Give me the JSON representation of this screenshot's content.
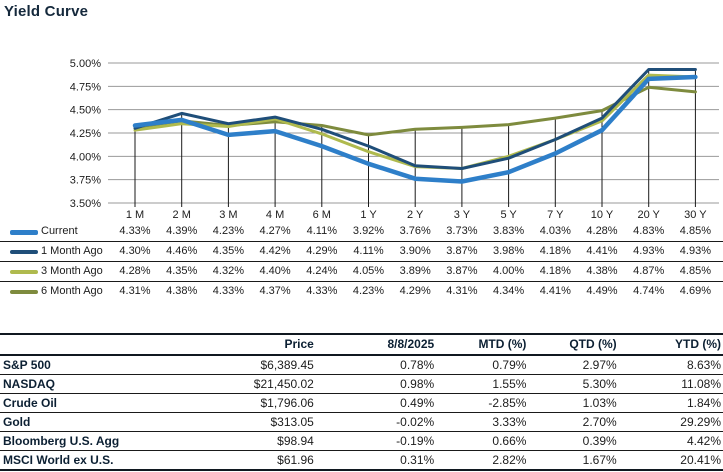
{
  "title": "Yield Curve",
  "chart_data": {
    "type": "line",
    "title": "Yield Curve",
    "categories": [
      "1 M",
      "2 M",
      "3 M",
      "4 M",
      "6 M",
      "1 Y",
      "2 Y",
      "3 Y",
      "5 Y",
      "7 Y",
      "10 Y",
      "20 Y",
      "30 Y"
    ],
    "y_ticks": [
      "5.00%",
      "4.75%",
      "4.50%",
      "4.25%",
      "4.00%",
      "3.75%",
      "3.50%"
    ],
    "ylim": [
      3.5,
      5.0
    ],
    "y_step": 0.25,
    "grid": true,
    "grid_color": "#999999",
    "drop_lines": true,
    "dropline_color": "#1a1a1a",
    "legend_position": "bottom-table",
    "value_format": "percent2",
    "series": [
      {
        "name": "Current",
        "color": "#2E7FC9",
        "width": 4.5,
        "values": [
          4.33,
          4.39,
          4.23,
          4.27,
          4.11,
          3.92,
          3.76,
          3.73,
          3.83,
          4.03,
          4.28,
          4.83,
          4.85
        ]
      },
      {
        "name": "1 Month Ago",
        "color": "#1F4E79",
        "width": 3,
        "values": [
          4.3,
          4.46,
          4.35,
          4.42,
          4.29,
          4.11,
          3.9,
          3.87,
          3.98,
          4.18,
          4.41,
          4.93,
          4.93
        ]
      },
      {
        "name": "3 Month Ago",
        "color": "#AFBA4E",
        "width": 3,
        "values": [
          4.28,
          4.35,
          4.32,
          4.4,
          4.24,
          4.05,
          3.89,
          3.87,
          4.0,
          4.18,
          4.38,
          4.87,
          4.85
        ]
      },
      {
        "name": "6 Month Ago",
        "color": "#7E8B3E",
        "width": 3,
        "values": [
          4.31,
          4.38,
          4.33,
          4.37,
          4.33,
          4.23,
          4.29,
          4.31,
          4.34,
          4.41,
          4.49,
          4.74,
          4.69
        ]
      }
    ]
  },
  "market_table": {
    "headers": [
      "",
      "Price",
      "8/8/2025",
      "MTD (%)",
      "QTD (%)",
      "YTD (%)"
    ],
    "rows": [
      {
        "label": "S&P 500",
        "values": [
          "$6,389.45",
          "0.78%",
          "0.79%",
          "2.97%",
          "8.63%"
        ]
      },
      {
        "label": "NASDAQ",
        "values": [
          "$21,450.02",
          "0.98%",
          "1.55%",
          "5.30%",
          "11.08%"
        ]
      },
      {
        "label": "Crude Oil",
        "values": [
          "$1,796.06",
          "0.49%",
          "-2.85%",
          "1.03%",
          "1.84%"
        ]
      },
      {
        "label": "Gold",
        "values": [
          "$313.05",
          "-0.02%",
          "3.33%",
          "2.70%",
          "29.29%"
        ]
      },
      {
        "label": "Bloomberg U.S. Agg",
        "values": [
          "$98.94",
          "-0.19%",
          "0.66%",
          "0.39%",
          "4.42%"
        ]
      },
      {
        "label": "MSCI World ex U.S.",
        "values": [
          "$61.96",
          "0.31%",
          "2.82%",
          "1.67%",
          "20.41%"
        ]
      }
    ]
  }
}
